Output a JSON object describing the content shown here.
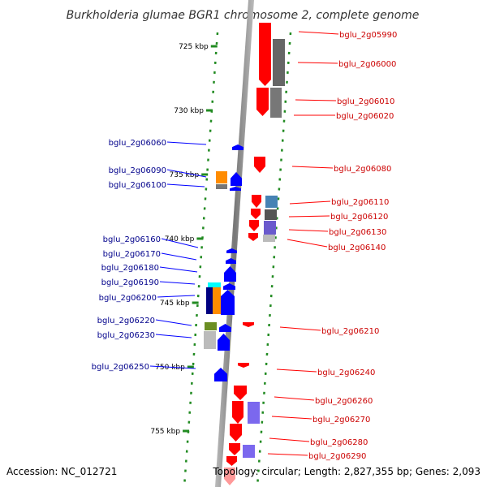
{
  "title": "Burkholderia glumae BGR1 chromosome 2, complete genome",
  "accession": "Accession: NC_012721",
  "topology": "Topology: circular; Length: 2,827,355 bp; Genes: 2,093",
  "ticks": [
    "725 kbp",
    "730 kbp",
    "735 kbp",
    "740 kbp",
    "745 kbp",
    "750 kbp",
    "755 kbp"
  ],
  "left_genes": [
    "bglu_2g06060",
    "bglu_2g06090",
    "bglu_2g06100",
    "bglu_2g06160",
    "bglu_2g06170",
    "bglu_2g06180",
    "bglu_2g06190",
    "bglu_2g06200",
    "bglu_2g06220",
    "bglu_2g06230",
    "bglu_2g06250"
  ],
  "right_genes": [
    "bglu_2g05990",
    "bglu_2g06000",
    "bglu_2g06010",
    "bglu_2g06020",
    "bglu_2g06080",
    "bglu_2g06110",
    "bglu_2g06120",
    "bglu_2g06130",
    "bglu_2g06140",
    "bglu_2g06210",
    "bglu_2g06240",
    "bglu_2g06260",
    "bglu_2g06270",
    "bglu_2g06280",
    "bglu_2g06290"
  ],
  "colors": {
    "forward": "#ff0000",
    "reverse": "#0000ff",
    "backbone": "#888888",
    "scale": "#228b22",
    "left_label": "#00008b",
    "right_label": "#cc0000"
  }
}
